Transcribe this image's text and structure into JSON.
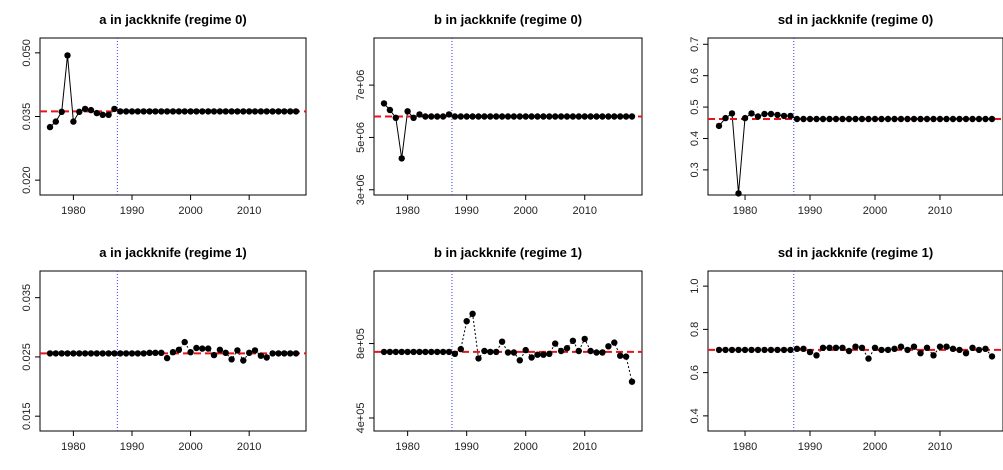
{
  "chart_data": [
    {
      "type": "line",
      "title": "a in jackknife (regime 0)",
      "x": [
        1976,
        1977,
        1978,
        1979,
        1980,
        1981,
        1982,
        1983,
        1984,
        1985,
        1986,
        1987,
        1988,
        1989,
        1990,
        1991,
        1992,
        1993,
        1994,
        1995,
        1996,
        1997,
        1998,
        1999,
        2000,
        2001,
        2002,
        2003,
        2004,
        2005,
        2006,
        2007,
        2008,
        2009,
        2010,
        2011,
        2012,
        2013,
        2014,
        2015,
        2016,
        2017,
        2018
      ],
      "values": [
        0.0325,
        0.0338,
        0.0361,
        0.0494,
        0.0338,
        0.0361,
        0.0368,
        0.0365,
        0.0358,
        0.0354,
        0.0354,
        0.0368,
        0.0362,
        0.0362,
        0.0362,
        0.0362,
        0.0362,
        0.0362,
        0.0362,
        0.0362,
        0.0362,
        0.0362,
        0.0362,
        0.0362,
        0.0362,
        0.0362,
        0.0362,
        0.0362,
        0.0362,
        0.0362,
        0.0362,
        0.0362,
        0.0362,
        0.0362,
        0.0362,
        0.0362,
        0.0362,
        0.0362,
        0.0362,
        0.0362,
        0.0362,
        0.0362,
        0.0362
      ],
      "reference": 0.0362,
      "vline": 1987.5,
      "xlim": [
        1974.3,
        2019.7
      ],
      "ylim": [
        0.0165,
        0.0535
      ],
      "xticks": [
        1980,
        1990,
        2000,
        2010
      ],
      "yticks": [
        0.02,
        0.035,
        0.05
      ],
      "ytick_labels": [
        "0.020",
        "0.035",
        "0.050"
      ],
      "connect": "solid"
    },
    {
      "type": "line",
      "title": "b in jackknife (regime 0)",
      "x": [
        1976,
        1977,
        1978,
        1979,
        1980,
        1981,
        1982,
        1983,
        1984,
        1985,
        1986,
        1987,
        1988,
        1989,
        1990,
        1991,
        1992,
        1993,
        1994,
        1995,
        1996,
        1997,
        1998,
        1999,
        2000,
        2001,
        2002,
        2003,
        2004,
        2005,
        2006,
        2007,
        2008,
        2009,
        2010,
        2011,
        2012,
        2013,
        2014,
        2015,
        2016,
        2017,
        2018
      ],
      "values": [
        6300000,
        6050000,
        5750000,
        4200000,
        6000000,
        5750000,
        5880000,
        5800000,
        5800000,
        5800000,
        5800000,
        5880000,
        5800000,
        5800000,
        5800000,
        5800000,
        5800000,
        5800000,
        5800000,
        5800000,
        5800000,
        5800000,
        5800000,
        5800000,
        5800000,
        5800000,
        5800000,
        5800000,
        5800000,
        5800000,
        5800000,
        5800000,
        5800000,
        5800000,
        5800000,
        5800000,
        5800000,
        5800000,
        5800000,
        5800000,
        5800000,
        5800000,
        5800000
      ],
      "reference": 5800000,
      "vline": 1987.5,
      "xlim": [
        1974.3,
        2019.7
      ],
      "ylim": [
        2800000,
        8800000
      ],
      "xticks": [
        1980,
        1990,
        2000,
        2010
      ],
      "yticks": [
        3000000,
        5000000,
        7000000
      ],
      "ytick_labels": [
        "3e+06",
        "5e+06",
        "7e+06"
      ],
      "connect": "solid"
    },
    {
      "type": "line",
      "title": "sd in jackknife (regime 0)",
      "x": [
        1976,
        1977,
        1978,
        1979,
        1980,
        1981,
        1982,
        1983,
        1984,
        1985,
        1986,
        1987,
        1988,
        1989,
        1990,
        1991,
        1992,
        1993,
        1994,
        1995,
        1996,
        1997,
        1998,
        1999,
        2000,
        2001,
        2002,
        2003,
        2004,
        2005,
        2006,
        2007,
        2008,
        2009,
        2010,
        2011,
        2012,
        2013,
        2014,
        2015,
        2016,
        2017,
        2018
      ],
      "values": [
        0.44,
        0.465,
        0.48,
        0.225,
        0.465,
        0.48,
        0.47,
        0.478,
        0.478,
        0.475,
        0.472,
        0.472,
        0.462,
        0.462,
        0.462,
        0.462,
        0.462,
        0.462,
        0.462,
        0.462,
        0.462,
        0.462,
        0.462,
        0.462,
        0.462,
        0.462,
        0.462,
        0.462,
        0.462,
        0.462,
        0.462,
        0.462,
        0.462,
        0.462,
        0.462,
        0.462,
        0.462,
        0.462,
        0.462,
        0.462,
        0.462,
        0.462,
        0.462
      ],
      "reference": 0.462,
      "vline": 1987.5,
      "xlim": [
        1974.3,
        2019.7
      ],
      "ylim": [
        0.22,
        0.72
      ],
      "xticks": [
        1980,
        1990,
        2000,
        2010
      ],
      "yticks": [
        0.3,
        0.4,
        0.5,
        0.6,
        0.7
      ],
      "ytick_labels": [
        "0.3",
        "0.4",
        "0.5",
        "0.6",
        "0.7"
      ],
      "connect": "solid"
    },
    {
      "type": "line",
      "title": "a in jackknife (regime 1)",
      "x": [
        1976,
        1977,
        1978,
        1979,
        1980,
        1981,
        1982,
        1983,
        1984,
        1985,
        1986,
        1987,
        1988,
        1989,
        1990,
        1991,
        1992,
        1993,
        1994,
        1995,
        1996,
        1997,
        1998,
        1999,
        2000,
        2001,
        2002,
        2003,
        2004,
        2005,
        2006,
        2007,
        2008,
        2009,
        2010,
        2011,
        2012,
        2013,
        2014,
        2015,
        2016,
        2017,
        2018
      ],
      "values": [
        0.0256,
        0.0256,
        0.0256,
        0.0256,
        0.0256,
        0.0256,
        0.0256,
        0.0256,
        0.0256,
        0.0256,
        0.0256,
        0.0256,
        0.0256,
        0.0256,
        0.0256,
        0.0256,
        0.0256,
        0.0257,
        0.0257,
        0.0257,
        0.0248,
        0.0258,
        0.0262,
        0.0275,
        0.0258,
        0.0265,
        0.0264,
        0.0264,
        0.0253,
        0.0262,
        0.0257,
        0.0246,
        0.0261,
        0.0244,
        0.0257,
        0.0261,
        0.0252,
        0.0249,
        0.0256,
        0.0256,
        0.0256,
        0.0256,
        0.0256
      ],
      "reference": 0.0256,
      "vline": 1987.5,
      "xlim": [
        1974.3,
        2019.7
      ],
      "ylim": [
        0.0125,
        0.0395
      ],
      "xticks": [
        1980,
        1990,
        2000,
        2010
      ],
      "yticks": [
        0.015,
        0.025,
        0.035
      ],
      "ytick_labels": [
        "0.015",
        "0.025",
        "0.035"
      ],
      "connect": "dotted"
    },
    {
      "type": "line",
      "title": "b in jackknife (regime 1)",
      "x": [
        1976,
        1977,
        1978,
        1979,
        1980,
        1981,
        1982,
        1983,
        1984,
        1985,
        1986,
        1987,
        1988,
        1989,
        1990,
        1991,
        1992,
        1993,
        1994,
        1995,
        1996,
        1997,
        1998,
        1999,
        2000,
        2001,
        2002,
        2003,
        2004,
        2005,
        2006,
        2007,
        2008,
        2009,
        2010,
        2011,
        2012,
        2013,
        2014,
        2015,
        2016,
        2017,
        2018
      ],
      "values": [
        755000,
        755000,
        755000,
        755000,
        755000,
        755000,
        755000,
        755000,
        755000,
        755000,
        755000,
        755000,
        745000,
        770000,
        920000,
        960000,
        720000,
        760000,
        755000,
        755000,
        810000,
        752000,
        752000,
        710000,
        765000,
        725000,
        740000,
        740000,
        745000,
        800000,
        760000,
        775000,
        815000,
        760000,
        825000,
        760000,
        752000,
        752000,
        785000,
        805000,
        735000,
        730000,
        595000
      ],
      "reference": 755000,
      "vline": 1987.5,
      "xlim": [
        1974.3,
        2019.7
      ],
      "ylim": [
        330000,
        1190000
      ],
      "xticks": [
        1980,
        1990,
        2000,
        2010
      ],
      "yticks": [
        400000,
        800000
      ],
      "ytick_labels": [
        "4e+05",
        "8e+05"
      ],
      "connect": "dotted"
    },
    {
      "type": "line",
      "title": "sd in jackknife (regime 1)",
      "x": [
        1976,
        1977,
        1978,
        1979,
        1980,
        1981,
        1982,
        1983,
        1984,
        1985,
        1986,
        1987,
        1988,
        1989,
        1990,
        1991,
        1992,
        1993,
        1994,
        1995,
        1996,
        1997,
        1998,
        1999,
        2000,
        2001,
        2002,
        2003,
        2004,
        2005,
        2006,
        2007,
        2008,
        2009,
        2010,
        2011,
        2012,
        2013,
        2014,
        2015,
        2016,
        2017,
        2018
      ],
      "values": [
        0.705,
        0.705,
        0.705,
        0.705,
        0.705,
        0.705,
        0.705,
        0.705,
        0.705,
        0.705,
        0.705,
        0.705,
        0.71,
        0.71,
        0.695,
        0.68,
        0.715,
        0.715,
        0.715,
        0.715,
        0.7,
        0.72,
        0.715,
        0.665,
        0.715,
        0.705,
        0.705,
        0.71,
        0.72,
        0.705,
        0.72,
        0.69,
        0.715,
        0.68,
        0.72,
        0.72,
        0.71,
        0.705,
        0.69,
        0.715,
        0.705,
        0.71,
        0.675
      ],
      "reference": 0.705,
      "vline": 1987.5,
      "xlim": [
        1974.3,
        2019.7
      ],
      "ylim": [
        0.33,
        1.07
      ],
      "xticks": [
        1980,
        1990,
        2000,
        2010
      ],
      "yticks": [
        0.4,
        0.6,
        0.8,
        1.0
      ],
      "ytick_labels": [
        "0.4",
        "0.6",
        "0.8",
        "1.0"
      ],
      "connect": "dotted"
    }
  ]
}
